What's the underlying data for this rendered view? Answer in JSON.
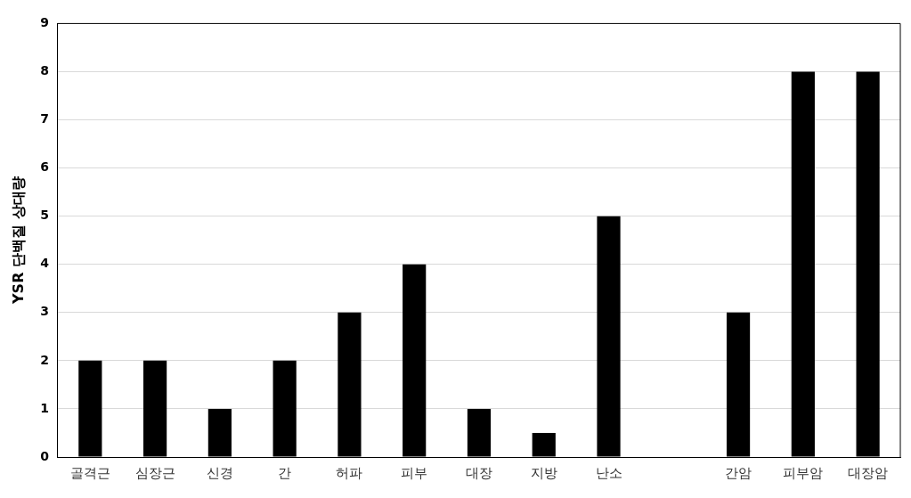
{
  "chart_data": {
    "type": "bar",
    "ylabel": "YSR 단백질 상대량",
    "categories": [
      "골격근",
      "심장근",
      "신경",
      "간",
      "허파",
      "피부",
      "대장",
      "지방",
      "난소",
      null,
      "간암",
      "피부암",
      "대장암"
    ],
    "values": [
      2,
      2,
      1,
      2,
      3,
      4,
      1,
      0.5,
      5,
      null,
      3,
      8,
      8
    ],
    "color": "#000000",
    "ylim": [
      0,
      9
    ],
    "yticks": [
      0,
      1,
      2,
      3,
      4,
      5,
      6,
      7,
      8,
      9
    ],
    "grid": "y",
    "legend": false
  }
}
